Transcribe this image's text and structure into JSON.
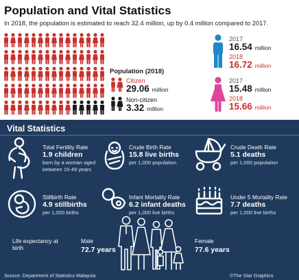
{
  "header": {
    "title": "Population and Vital Statistics",
    "subtitle": "In 2018, the population is estimated to reach 32.4 million, up by 0.4 million compared to 2017."
  },
  "population": {
    "heading": "Population (2018)",
    "citizen_label": "Citizen",
    "citizen_value": "29.06",
    "noncitizen_label": "Non-citizen",
    "noncitizen_value": "3.32",
    "unit": "million"
  },
  "male": {
    "year_a": "2017",
    "value_a": "16.54",
    "year_b": "2018",
    "value_b": "16.72",
    "unit": "million"
  },
  "female": {
    "year_a": "2017",
    "value_a": "15.48",
    "year_b": "2018",
    "value_b": "15.66",
    "unit": "million"
  },
  "vital": {
    "title": "Vital Statistics",
    "stats": [
      {
        "title": "Total Fertility Rate",
        "value": "1.9 children",
        "sub": "born by a woman aged between 15-49 years",
        "icon": "pregnant-woman-icon"
      },
      {
        "title": "Crude Birth Rate",
        "value": "15.8 live births",
        "sub": "per 1,000 population",
        "icon": "swaddled-baby-icon"
      },
      {
        "title": "Crude Death Rate",
        "value": "5.1 deaths",
        "sub": "per 1,000 population",
        "icon": "pram-icon"
      },
      {
        "title": "Stillbirth Rate",
        "value": "4.9 stillbirths",
        "sub": "per 1,000 births",
        "icon": "fetus-icon"
      },
      {
        "title": "Infant Mortality Rate",
        "value": "6.2 infant deaths",
        "sub": "per 1,000 live births",
        "icon": "pacifier-icon"
      },
      {
        "title": "Under 5 Mortality Rate",
        "value": "7.7 deaths",
        "sub": "per 1,000 live births",
        "icon": "birthday-cake-icon"
      }
    ],
    "life_expectancy": {
      "label": "Life expectancy at birth",
      "male_label": "Male",
      "male_value": "72.7 years",
      "female_label": "Female",
      "female_value": "77.6 years"
    }
  },
  "footer": {
    "source": "Source: Department of Statistics Malaysia",
    "credit": "©The Star Graphics"
  },
  "colors": {
    "red": "#c9302c",
    "blue": "#1e88c8",
    "pink": "#e0449a",
    "navy": "#1f3a5c",
    "dark": "#1a1a1a"
  }
}
